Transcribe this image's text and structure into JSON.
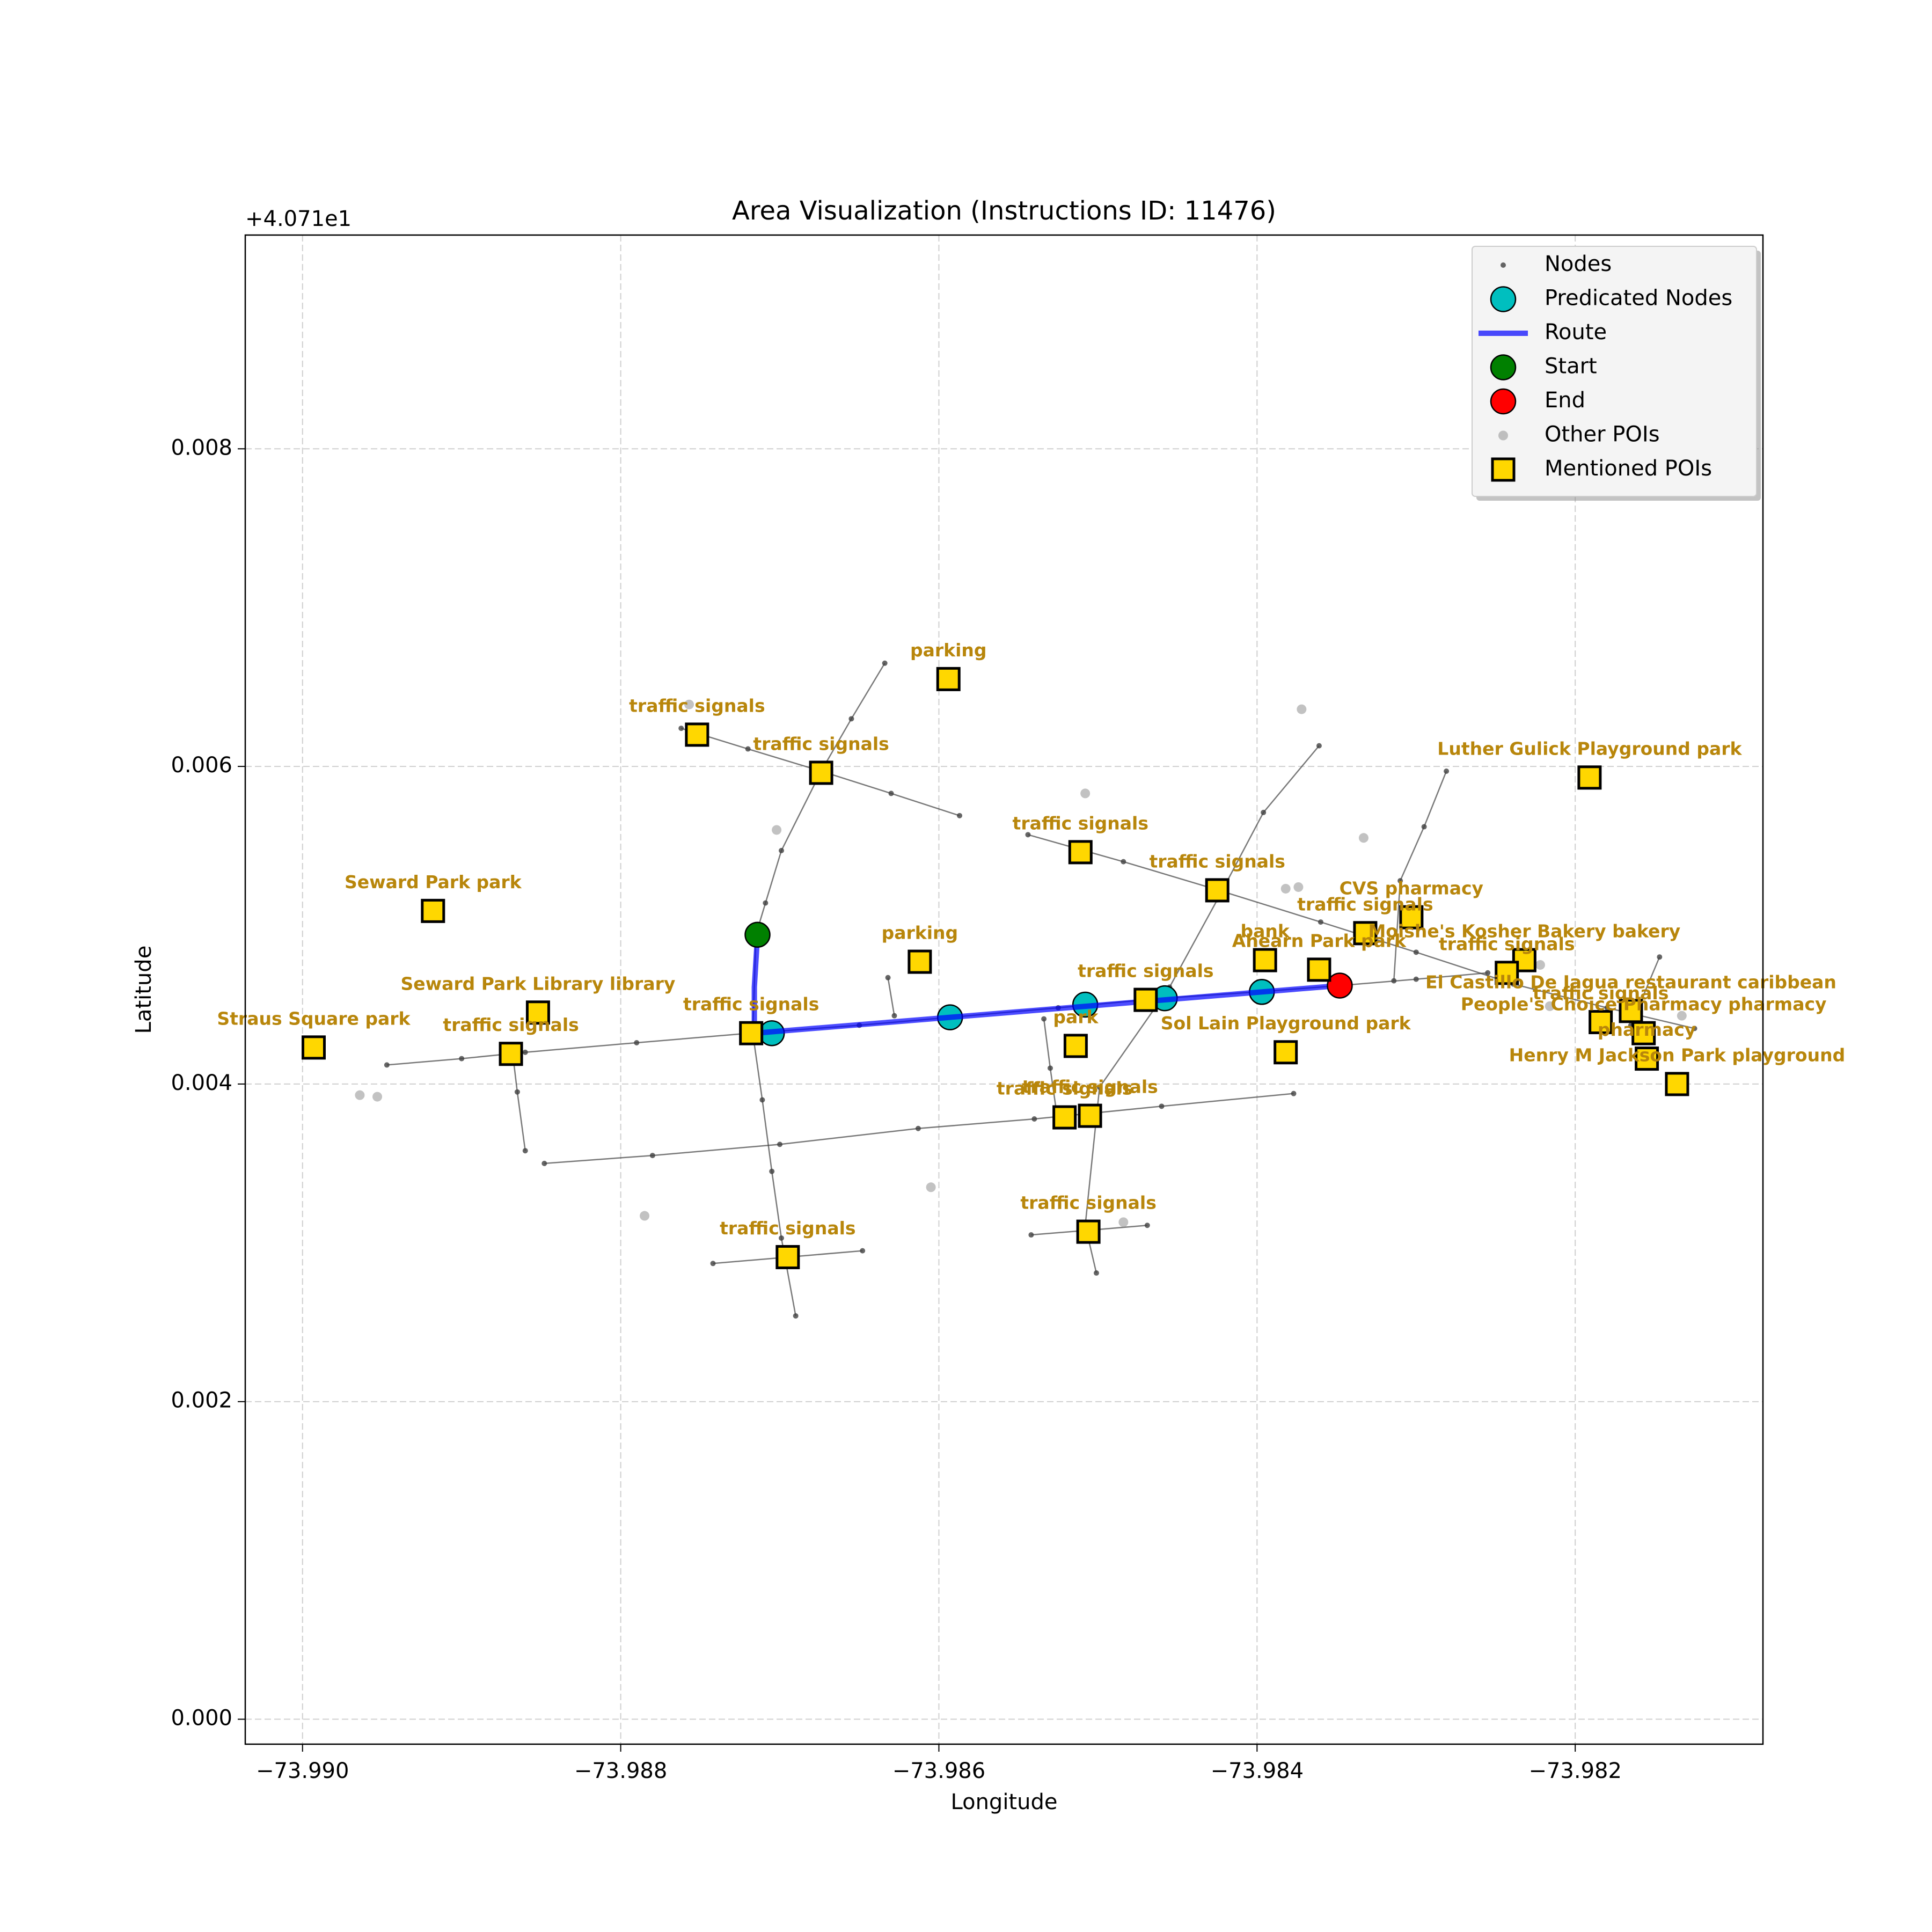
{
  "chart_data": {
    "type": "scatter",
    "title": "Area Visualization (Instructions ID: 11476)",
    "xlabel": "Longitude",
    "ylabel": "Latitude",
    "offset_text": "+4.071e1",
    "xlim": [
      -73.99036,
      -73.98082
    ],
    "ylim": [
      -0.000157,
      0.009346
    ],
    "xticks": [
      {
        "value": -73.99,
        "label": "−73.990"
      },
      {
        "value": -73.988,
        "label": "−73.988"
      },
      {
        "value": -73.986,
        "label": "−73.986"
      },
      {
        "value": -73.984,
        "label": "−73.984"
      },
      {
        "value": -73.982,
        "label": "−73.982"
      }
    ],
    "yticks": [
      {
        "value": 0,
        "label": "0.000"
      },
      {
        "value": 0.002,
        "label": "0.002"
      },
      {
        "value": 0.004,
        "label": "0.004"
      },
      {
        "value": 0.006,
        "label": "0.006"
      },
      {
        "value": 0.008,
        "label": "0.008"
      }
    ],
    "grid": true,
    "legend": "upper right",
    "label_color": "#b8860b",
    "series": [
      {
        "name": "Nodes",
        "color": "#404040",
        "marker": "dot",
        "line": true,
        "x": [
          -73.98947,
          -73.989,
          -73.9886,
          -73.9879,
          -73.98719,
          -73.9865,
          -73.98593,
          -73.98525,
          -73.98459,
          -73.984,
          -73.98348,
          -73.983,
          -73.98255,
          null,
          -73.98848,
          -73.9878,
          -73.987,
          -73.98613,
          -73.9854,
          -73.9846,
          -73.98377,
          null,
          -73.98868,
          -73.98865,
          -73.9886,
          null,
          -73.98634,
          -73.98655,
          -73.98674,
          -73.98699,
          -73.98709,
          -73.98715,
          -73.98717,
          -73.98711,
          -73.98705,
          -73.98699,
          -73.9869,
          null,
          -73.98762,
          -73.9872,
          -73.98674,
          -73.9863,
          -73.98587,
          null,
          -73.98742,
          -73.98695,
          -73.98648,
          null,
          -73.98544,
          -73.98484,
          -73.98424,
          -73.9836,
          -73.983,
          -73.98239,
          -73.9818,
          -73.98125,
          null,
          -73.98361,
          -73.98396,
          -73.98425,
          -73.98455,
          -73.98499,
          -73.98508,
          -73.98501,
          null,
          -73.98534,
          -73.9853,
          -73.98526,
          null,
          -73.98542,
          -73.98505,
          -73.98469,
          null,
          -73.98281,
          -73.98295,
          -73.9831,
          -73.98314,
          null,
          -73.98147,
          -73.98165,
          null,
          -73.98632,
          -73.98628
        ],
        "y": [
          0.00412,
          0.00416,
          0.0042,
          0.00426,
          0.00432,
          0.00437,
          0.00442,
          0.00448,
          0.00454,
          0.00458,
          0.00462,
          0.00466,
          0.0047,
          null,
          0.0035,
          0.00355,
          0.00362,
          0.00372,
          0.00378,
          0.00386,
          0.00394,
          null,
          0.0042,
          0.00395,
          0.00358,
          null,
          0.00665,
          0.0063,
          0.00597,
          0.00547,
          0.00514,
          0.00494,
          0.00432,
          0.0039,
          0.00345,
          0.00303,
          0.00254,
          null,
          0.00624,
          0.00611,
          0.00597,
          0.00583,
          0.00569,
          null,
          0.00287,
          0.00291,
          0.00295,
          null,
          0.00557,
          0.0054,
          0.00522,
          0.00502,
          0.00483,
          0.00463,
          0.00448,
          0.00435,
          null,
          0.00613,
          0.00571,
          0.00516,
          0.00461,
          0.00398,
          0.00311,
          0.00281,
          null,
          0.00441,
          0.0041,
          0.00382,
          null,
          0.00305,
          0.00308,
          0.00311,
          null,
          0.00597,
          0.00562,
          0.00528,
          0.00465,
          null,
          0.0048,
          0.00437,
          null,
          0.00467,
          0.00443
        ]
      },
      {
        "name": "Predicated Nodes",
        "color": "#00bfbf",
        "marker": "circle",
        "x": [
          -73.98705,
          -73.98593,
          -73.98508,
          -73.98458,
          -73.98397
        ],
        "y": [
          0.00432,
          0.00442,
          0.0045,
          0.00454,
          0.00458
        ]
      },
      {
        "name": "Route",
        "color": "#0000ff",
        "line": true,
        "x": [
          -73.98714,
          -73.98716,
          -73.98716,
          -73.98593,
          -73.98348
        ],
        "y": [
          0.00494,
          0.00461,
          0.00432,
          0.00442,
          0.00462
        ]
      },
      {
        "name": "Start",
        "color": "#008000",
        "marker": "circle",
        "x": [
          -73.98714
        ],
        "y": [
          0.00494
        ]
      },
      {
        "name": "End",
        "color": "#ff0000",
        "marker": "circle",
        "x": [
          -73.98348
        ],
        "y": [
          0.00462
        ]
      },
      {
        "name": "Other POIs",
        "color": "#999999",
        "marker": "small-circle",
        "x": [
          -73.98757,
          -73.98702,
          -73.98508,
          -73.98372,
          -73.98333,
          -73.98382,
          -73.98374,
          -73.98964,
          -73.98953,
          -73.98785,
          -73.98605,
          -73.98484,
          -73.98222,
          -73.98216,
          -73.98133
        ],
        "y": [
          0.00639,
          0.0056,
          0.00583,
          0.00636,
          0.00555,
          0.00523,
          0.00524,
          0.00393,
          0.00392,
          0.00317,
          0.00335,
          0.00313,
          0.00475,
          0.00449,
          0.00443
        ]
      },
      {
        "name": "Mentioned POIs",
        "color": "#ffd700",
        "marker": "square",
        "x": [
          -73.98594,
          -73.98752,
          -73.98674,
          -73.98918,
          -73.98511,
          -73.98425,
          -73.98191,
          -73.98303,
          -73.98332,
          -73.98612,
          -73.98395,
          -73.98361,
          -73.98232,
          -73.98243,
          -73.98852,
          -73.98718,
          -73.9847,
          -73.98514,
          -73.98382,
          -73.98993,
          -73.98869,
          -73.98165,
          -73.98184,
          -73.98157,
          -73.98155,
          -73.98136,
          -73.98521,
          -73.98505,
          -73.98506,
          -73.98695
        ],
        "y": [
          0.00655,
          0.0062,
          0.00596,
          0.00509,
          0.00546,
          0.00522,
          0.00593,
          0.00505,
          0.00495,
          0.00477,
          0.00478,
          0.00472,
          0.00478,
          0.0047,
          0.00445,
          0.00432,
          0.00453,
          0.00424,
          0.0042,
          0.00423,
          0.00419,
          0.00446,
          0.00439,
          0.00432,
          0.00416,
          0.004,
          0.00379,
          0.0038,
          0.00307,
          0.00291
        ],
        "labels": [
          "parking",
          "traffic signals",
          "traffic signals",
          "Seward Park   park",
          "traffic signals",
          "traffic signals",
          "Luther Gulick Playground   park",
          "CVS pharmacy",
          "traffic signals",
          "parking",
          "bank",
          "Ahearn Park   park",
          "Moishe's Kosher Bakery   bakery",
          "traffic signals",
          "Seward Park Library library",
          "traffic signals",
          "traffic signals",
          "park",
          "Sol Lain Playground   park",
          "Straus Square   park",
          "traffic signals",
          "El Castillo De Jagua restaurant caribbean",
          "traffic signals",
          "People's Choice Pharmacy pharmacy",
          "pharmacy",
          "Henry M Jackson Park   playground",
          "traffic signals",
          "traffic signals",
          "traffic signals",
          "traffic signals"
        ]
      }
    ]
  }
}
